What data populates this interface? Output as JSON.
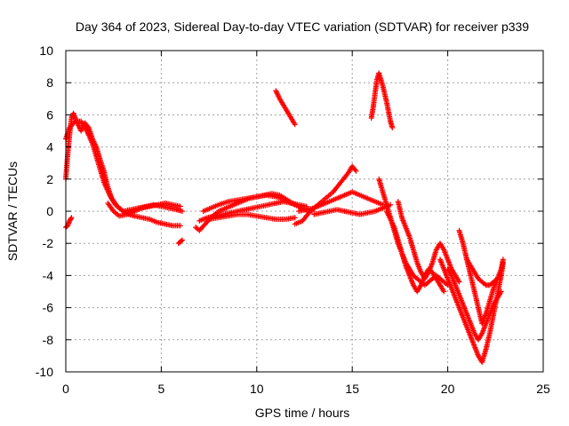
{
  "chart_data": {
    "type": "scatter",
    "title": "Day 364 of 2023, Sidereal Day-to-day VTEC variation (SDTVAR) for receiver p339",
    "xlabel": "GPS time / hours",
    "ylabel": "SDTVAR / TECUs",
    "xlim": [
      0,
      25
    ],
    "ylim": [
      -10,
      10
    ],
    "xticks": [
      0,
      5,
      10,
      15,
      20,
      25
    ],
    "yticks": [
      -10,
      -8,
      -6,
      -4,
      -2,
      0,
      2,
      4,
      6,
      8,
      10
    ],
    "grid": true,
    "marker": "+",
    "color": "#ff0000",
    "series": [
      {
        "name": "s1",
        "x": [
          0.0,
          0.1,
          0.2,
          0.3,
          0.4,
          0.6,
          0.8,
          1.0,
          1.2,
          1.4,
          1.6,
          1.8,
          2.0,
          2.2,
          2.4,
          2.7,
          3.0,
          3.3,
          3.6,
          4.0,
          4.4,
          4.8,
          5.2,
          5.6,
          6.0
        ],
        "y": [
          2.0,
          3.5,
          4.8,
          5.8,
          6.1,
          5.5,
          5.0,
          5.5,
          5.2,
          4.5,
          4.0,
          3.2,
          2.5,
          1.5,
          0.8,
          0.3,
          0.0,
          -0.2,
          -0.3,
          -0.4,
          -0.5,
          -0.7,
          -0.8,
          -0.9,
          -0.9
        ]
      },
      {
        "name": "s2",
        "x": [
          0.0,
          0.2,
          0.5,
          0.8,
          1.1,
          1.4,
          1.7,
          2.0,
          2.3,
          2.6,
          3.0,
          3.4,
          3.8,
          4.2,
          4.6,
          5.0,
          5.4,
          5.8,
          6.1
        ],
        "y": [
          4.5,
          5.2,
          5.6,
          5.6,
          5.0,
          4.2,
          3.0,
          1.8,
          1.0,
          0.4,
          0.0,
          0.1,
          0.2,
          0.3,
          0.4,
          0.3,
          0.2,
          0.1,
          0.0
        ]
      },
      {
        "name": "s3",
        "x": [
          0.0,
          0.1,
          0.2,
          0.3
        ],
        "y": [
          -1.0,
          -0.9,
          -0.6,
          -0.4
        ]
      },
      {
        "name": "s4",
        "x": [
          2.2,
          2.5,
          2.8,
          3.2,
          3.6,
          4.0,
          4.4,
          4.8,
          5.2,
          5.6,
          6.0
        ],
        "y": [
          0.5,
          0.0,
          -0.3,
          -0.2,
          0.0,
          0.2,
          0.3,
          0.4,
          0.5,
          0.4,
          0.3
        ]
      },
      {
        "name": "s5",
        "x": [
          5.9,
          6.0,
          6.1
        ],
        "y": [
          -2.0,
          -1.9,
          -1.8
        ]
      },
      {
        "name": "s6",
        "x": [
          6.8,
          7.0,
          7.3,
          7.6,
          8.0,
          8.4,
          8.8,
          9.2,
          9.6,
          10.0,
          10.4,
          10.8,
          11.2,
          11.6,
          12.0
        ],
        "y": [
          -1.0,
          -1.2,
          -0.8,
          -0.4,
          0.0,
          0.2,
          0.4,
          0.6,
          0.8,
          0.9,
          1.0,
          1.1,
          1.0,
          0.7,
          0.4
        ]
      },
      {
        "name": "s7",
        "x": [
          7.2,
          7.6,
          8.0,
          8.5,
          9.0,
          9.5,
          10.0,
          10.5,
          11.0,
          11.5,
          12.0,
          12.5,
          12.9
        ],
        "y": [
          0.0,
          0.2,
          0.4,
          0.6,
          0.7,
          0.8,
          0.9,
          1.0,
          0.9,
          0.7,
          0.4,
          0.1,
          0.0
        ]
      },
      {
        "name": "s8",
        "x": [
          7.0,
          7.4,
          7.8,
          8.2,
          8.6,
          9.0,
          9.4,
          9.8,
          10.2,
          10.6,
          11.0,
          11.4,
          11.8,
          12.2,
          12.6
        ],
        "y": [
          -0.6,
          -0.4,
          -0.3,
          -0.2,
          -0.1,
          0.0,
          0.1,
          0.2,
          0.3,
          0.4,
          0.5,
          0.6,
          0.5,
          0.4,
          0.3
        ]
      },
      {
        "name": "s9",
        "x": [
          7.5,
          8.0,
          8.5,
          9.0,
          9.5,
          10.0,
          10.5,
          11.0,
          11.5,
          12.0
        ],
        "y": [
          -0.5,
          -0.4,
          -0.3,
          -0.2,
          -0.2,
          -0.3,
          -0.4,
          -0.5,
          -0.5,
          -0.4
        ]
      },
      {
        "name": "s10",
        "x": [
          11.0,
          11.2,
          11.4,
          11.6,
          11.8,
          12.0
        ],
        "y": [
          7.5,
          7.0,
          6.6,
          6.2,
          5.8,
          5.4
        ]
      },
      {
        "name": "s11",
        "x": [
          12.0,
          12.4,
          12.8,
          13.2,
          13.6,
          14.0,
          14.4,
          14.8,
          15.0,
          15.2
        ],
        "y": [
          -0.8,
          -0.6,
          0.0,
          0.4,
          0.8,
          1.2,
          1.8,
          2.4,
          2.8,
          2.5
        ]
      },
      {
        "name": "s12",
        "x": [
          12.2,
          12.6,
          13.0,
          13.4,
          13.8,
          14.2,
          14.6,
          15.0,
          15.4,
          15.8,
          16.2,
          16.6
        ],
        "y": [
          0.0,
          0.1,
          0.2,
          0.4,
          0.6,
          0.8,
          1.0,
          1.2,
          1.0,
          0.8,
          0.6,
          0.4
        ]
      },
      {
        "name": "s13",
        "x": [
          13.0,
          13.4,
          13.8,
          14.2,
          14.6,
          15.0,
          15.4,
          15.8,
          16.2,
          16.6,
          17.0
        ],
        "y": [
          -0.2,
          -0.1,
          0.0,
          0.1,
          0.0,
          -0.1,
          -0.2,
          -0.1,
          0.0,
          0.2,
          0.4
        ]
      },
      {
        "name": "s14",
        "x": [
          16.0,
          16.1,
          16.2,
          16.3,
          16.4,
          16.6,
          16.8,
          17.0,
          17.1
        ],
        "y": [
          5.8,
          6.5,
          7.4,
          8.2,
          8.6,
          7.8,
          6.8,
          5.6,
          5.2
        ]
      },
      {
        "name": "s15",
        "x": [
          16.4,
          16.6,
          16.8,
          17.0,
          17.2,
          17.4,
          17.6,
          17.8,
          18.0,
          18.2,
          18.4,
          18.6,
          18.8,
          19.0,
          19.2,
          19.4,
          19.6,
          19.8,
          20.0
        ],
        "y": [
          2.0,
          1.2,
          0.4,
          -0.4,
          -1.2,
          -2.0,
          -2.6,
          -3.2,
          -3.6,
          -4.0,
          -4.2,
          -4.4,
          -4.6,
          -4.4,
          -4.2,
          -4.0,
          -4.2,
          -4.4,
          -4.6
        ]
      },
      {
        "name": "s16",
        "x": [
          16.8,
          17.0,
          17.2,
          17.4,
          17.6,
          17.8,
          18.0,
          18.2,
          18.4,
          18.6,
          18.8,
          19.0,
          19.2,
          19.4,
          19.6,
          19.8
        ],
        "y": [
          0.0,
          -0.5,
          -1.0,
          -1.8,
          -2.6,
          -3.4,
          -4.0,
          -4.6,
          -5.0,
          -4.6,
          -4.0,
          -3.6,
          -3.8,
          -4.2,
          -4.6,
          -5.0
        ]
      },
      {
        "name": "s17",
        "x": [
          17.4,
          17.6,
          17.8,
          18.0,
          18.2,
          18.4,
          18.6,
          18.8,
          19.0,
          19.2,
          19.4,
          19.6,
          19.8,
          20.0,
          20.2,
          20.4,
          20.6
        ],
        "y": [
          0.6,
          -0.4,
          -1.0,
          -1.6,
          -2.4,
          -3.2,
          -3.8,
          -4.2,
          -3.8,
          -3.2,
          -2.4,
          -2.0,
          -2.4,
          -3.0,
          -3.6,
          -4.0,
          -4.4
        ]
      },
      {
        "name": "s18",
        "x": [
          19.6,
          19.8,
          20.0,
          20.2,
          20.4,
          20.6,
          20.8,
          21.0,
          21.2,
          21.4,
          21.6,
          21.8,
          22.0,
          22.2,
          22.4,
          22.6,
          22.8,
          22.9
        ],
        "y": [
          -3.0,
          -3.6,
          -4.2,
          -4.8,
          -5.4,
          -6.0,
          -6.6,
          -7.2,
          -7.8,
          -8.4,
          -9.0,
          -9.4,
          -8.6,
          -7.6,
          -6.4,
          -5.2,
          -4.0,
          -3.2
        ]
      },
      {
        "name": "s19",
        "x": [
          20.0,
          20.2,
          20.4,
          20.6,
          20.8,
          21.0,
          21.2,
          21.4,
          21.6,
          21.8,
          22.0,
          22.2,
          22.4,
          22.6,
          22.8
        ],
        "y": [
          -3.6,
          -4.0,
          -4.6,
          -5.2,
          -5.8,
          -6.4,
          -7.0,
          -7.6,
          -8.0,
          -7.6,
          -7.0,
          -6.4,
          -5.8,
          -5.4,
          -5.0
        ]
      },
      {
        "name": "s20",
        "x": [
          20.6,
          20.8,
          21.0,
          21.2,
          21.4,
          21.6,
          21.8,
          22.0,
          22.2,
          22.4,
          22.6,
          22.8,
          22.9
        ],
        "y": [
          -1.2,
          -2.0,
          -3.0,
          -4.0,
          -5.0,
          -6.0,
          -7.0,
          -6.4,
          -5.6,
          -4.8,
          -4.2,
          -3.6,
          -3.0
        ]
      },
      {
        "name": "s21",
        "x": [
          21.0,
          21.2,
          21.4,
          21.6,
          21.8,
          22.0,
          22.2,
          22.4,
          22.6,
          22.8
        ],
        "y": [
          -3.0,
          -3.4,
          -3.8,
          -4.2,
          -4.4,
          -4.6,
          -4.6,
          -4.4,
          -4.2,
          -4.0
        ]
      }
    ]
  }
}
